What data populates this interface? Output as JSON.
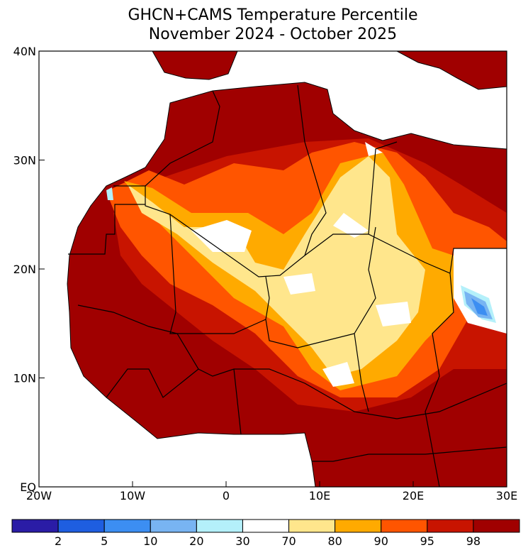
{
  "title": [
    "GHCN+CAMS Temperature Percentile",
    "November 2024 - October 2025"
  ],
  "map": {
    "xlim": [
      -20,
      30
    ],
    "ylim": [
      0,
      40
    ],
    "xticks": [
      {
        "value": -20,
        "label": "20W"
      },
      {
        "value": -10,
        "label": "10W"
      },
      0,
      {
        "value": 10,
        "label": "10E"
      },
      {
        "value": 20,
        "label": "20E"
      },
      {
        "value": 30,
        "label": "30E"
      }
    ],
    "yticks": [
      {
        "value": 0,
        "label": "EQ"
      },
      {
        "value": 10,
        "label": "10N"
      },
      {
        "value": 20,
        "label": "20N"
      },
      {
        "value": 30,
        "label": "30N"
      },
      {
        "value": 40,
        "label": "40N"
      }
    ]
  },
  "colorbar": {
    "colors": [
      "#2a1ca6",
      "#1e5ee0",
      "#3c8ef2",
      "#78b4f2",
      "#b4f0fa",
      "#ffffff",
      "#ffe68c",
      "#ffaa00",
      "#ff5500",
      "#c81400",
      "#a00000"
    ],
    "ticks": [
      2,
      5,
      10,
      20,
      30,
      70,
      80,
      90,
      95,
      98
    ]
  }
}
